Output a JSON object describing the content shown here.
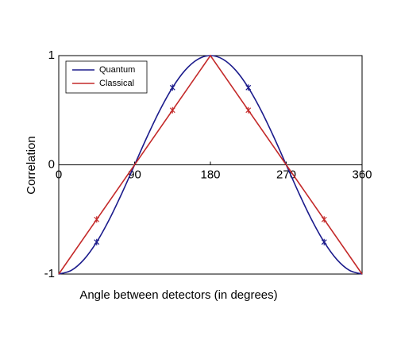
{
  "chart_data": {
    "type": "line",
    "xlabel": "Angle between detectors (in degrees)",
    "ylabel": "Correlation",
    "xlim": [
      0,
      360
    ],
    "xticks": [
      0,
      90,
      180,
      270,
      360
    ],
    "ylim": [
      -1,
      1
    ],
    "yticks": [
      -1,
      0,
      1
    ],
    "legend": "upper left",
    "series": [
      {
        "name": "Quantum",
        "color": "#1c1c8c",
        "smooth": true,
        "x": [
          0,
          15,
          30,
          45,
          60,
          75,
          90,
          105,
          120,
          135,
          150,
          165,
          180,
          195,
          210,
          225,
          240,
          255,
          270,
          285,
          300,
          315,
          330,
          345,
          360
        ],
        "values": [
          -1,
          -0.966,
          -0.866,
          -0.707,
          -0.5,
          -0.259,
          0,
          0.259,
          0.5,
          0.707,
          0.866,
          0.966,
          1,
          0.966,
          0.866,
          0.707,
          0.5,
          0.259,
          0,
          -0.259,
          -0.5,
          -0.707,
          -0.866,
          -0.966,
          -1
        ],
        "points": {
          "x": [
            45,
            135,
            225,
            315
          ],
          "values": [
            -0.707,
            0.707,
            0.707,
            -0.707
          ]
        }
      },
      {
        "name": "Classical",
        "color": "#c42a2a",
        "smooth": false,
        "x": [
          0,
          180,
          360
        ],
        "values": [
          -1,
          1,
          -1
        ],
        "points": {
          "x": [
            45,
            135,
            225,
            315
          ],
          "values": [
            -0.5,
            0.5,
            0.5,
            -0.5
          ]
        }
      }
    ]
  }
}
